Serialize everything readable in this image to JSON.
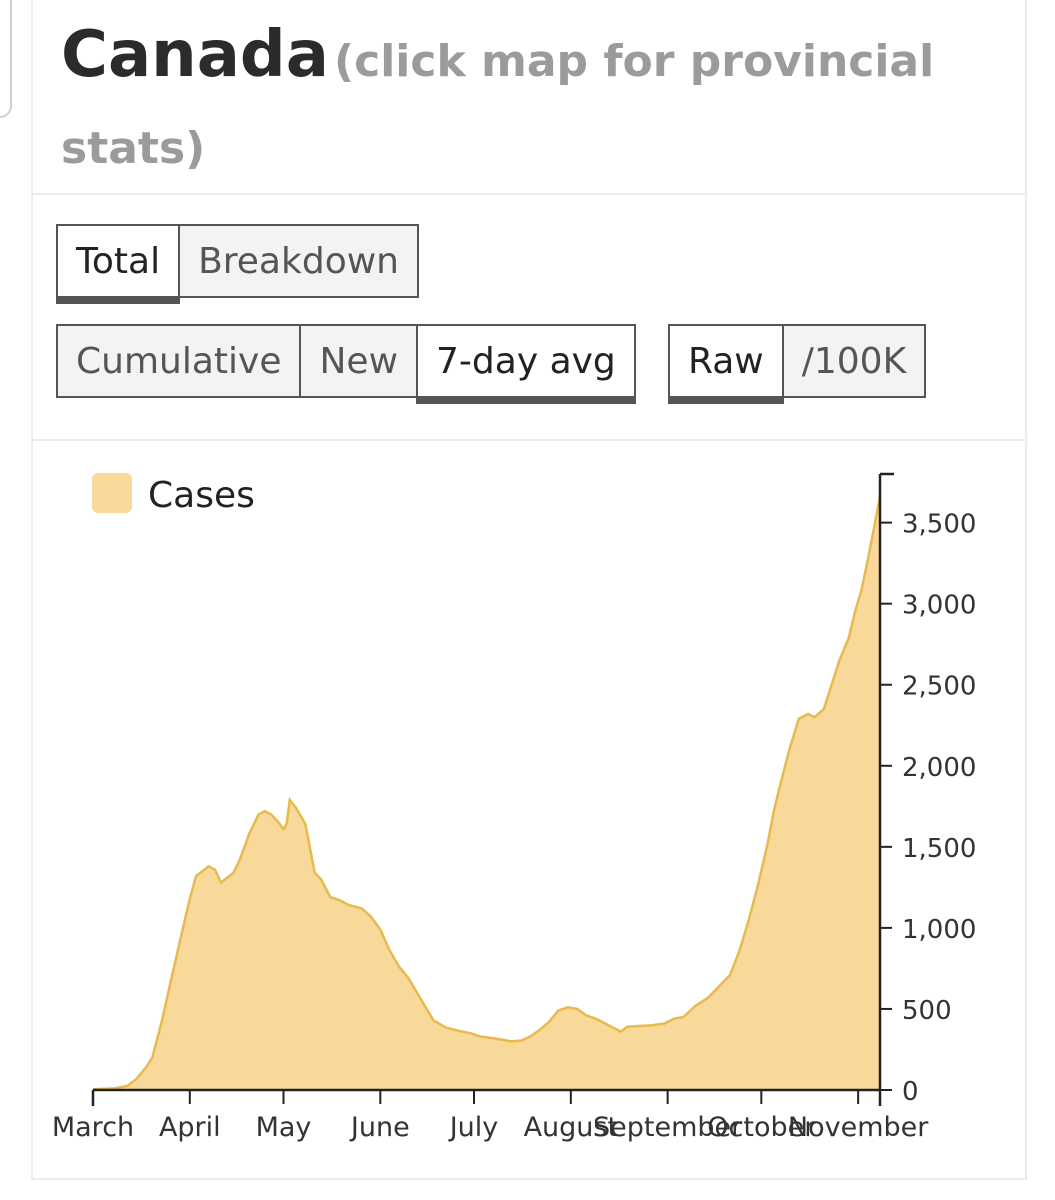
{
  "header": {
    "title": "Canada",
    "subtitle": "(click map for provincial stats)"
  },
  "controls": {
    "type_buttons": [
      {
        "label": "Total",
        "active": true
      },
      {
        "label": "Breakdown",
        "active": false
      }
    ],
    "mode_buttons": [
      {
        "label": "Cumulative",
        "active": false
      },
      {
        "label": "New",
        "active": false
      },
      {
        "label": "7-day avg",
        "active": true
      }
    ],
    "scale_buttons": [
      {
        "label": "Raw",
        "active": true
      },
      {
        "label": "/100K",
        "active": false
      }
    ]
  },
  "colors": {
    "area_fill": "#f9d99a",
    "area_stroke": "#e8b94e",
    "axis": "#222222"
  },
  "chart_data": {
    "type": "area",
    "legend": "Cases",
    "legend_position": "top-left",
    "y_axis_position": "right",
    "grid": false,
    "ylim": [
      0,
      3800
    ],
    "y_ticks": [
      0,
      500,
      1000,
      1500,
      2000,
      2500,
      3000,
      3500
    ],
    "y_tick_labels": [
      "0",
      "500",
      "1,000",
      "1,500",
      "2,000",
      "2,500",
      "3,000",
      "3,500"
    ],
    "x_ticks": [
      "March",
      "April",
      "May",
      "June",
      "July",
      "August",
      "September",
      "October",
      "November"
    ],
    "x_range": [
      "2020-03-01",
      "2020-11-08"
    ],
    "series": [
      {
        "name": "Cases",
        "points": [
          [
            "2020-03-01",
            5
          ],
          [
            "2020-03-08",
            10
          ],
          [
            "2020-03-12",
            25
          ],
          [
            "2020-03-15",
            70
          ],
          [
            "2020-03-18",
            140
          ],
          [
            "2020-03-20",
            200
          ],
          [
            "2020-03-23",
            420
          ],
          [
            "2020-03-26",
            680
          ],
          [
            "2020-03-29",
            930
          ],
          [
            "2020-04-01",
            1180
          ],
          [
            "2020-04-03",
            1320
          ],
          [
            "2020-04-05",
            1350
          ],
          [
            "2020-04-07",
            1380
          ],
          [
            "2020-04-09",
            1360
          ],
          [
            "2020-04-11",
            1280
          ],
          [
            "2020-04-13",
            1310
          ],
          [
            "2020-04-15",
            1340
          ],
          [
            "2020-04-17",
            1420
          ],
          [
            "2020-04-20",
            1580
          ],
          [
            "2020-04-23",
            1700
          ],
          [
            "2020-04-25",
            1720
          ],
          [
            "2020-04-27",
            1700
          ],
          [
            "2020-04-29",
            1660
          ],
          [
            "2020-05-01",
            1610
          ],
          [
            "2020-05-02",
            1640
          ],
          [
            "2020-05-03",
            1790
          ],
          [
            "2020-05-05",
            1740
          ],
          [
            "2020-05-08",
            1640
          ],
          [
            "2020-05-11",
            1340
          ],
          [
            "2020-05-13",
            1300
          ],
          [
            "2020-05-16",
            1190
          ],
          [
            "2020-05-19",
            1170
          ],
          [
            "2020-05-22",
            1140
          ],
          [
            "2020-05-26",
            1120
          ],
          [
            "2020-05-29",
            1070
          ],
          [
            "2020-06-01",
            990
          ],
          [
            "2020-06-04",
            860
          ],
          [
            "2020-06-07",
            760
          ],
          [
            "2020-06-10",
            690
          ],
          [
            "2020-06-14",
            560
          ],
          [
            "2020-06-18",
            430
          ],
          [
            "2020-06-22",
            385
          ],
          [
            "2020-06-26",
            365
          ],
          [
            "2020-06-30",
            350
          ],
          [
            "2020-07-03",
            330
          ],
          [
            "2020-07-07",
            320
          ],
          [
            "2020-07-10",
            310
          ],
          [
            "2020-07-13",
            300
          ],
          [
            "2020-07-16",
            305
          ],
          [
            "2020-07-19",
            330
          ],
          [
            "2020-07-22",
            370
          ],
          [
            "2020-07-25",
            420
          ],
          [
            "2020-07-28",
            490
          ],
          [
            "2020-07-31",
            510
          ],
          [
            "2020-08-03",
            500
          ],
          [
            "2020-08-06",
            460
          ],
          [
            "2020-08-09",
            440
          ],
          [
            "2020-08-12",
            410
          ],
          [
            "2020-08-15",
            380
          ],
          [
            "2020-08-17",
            360
          ],
          [
            "2020-08-19",
            390
          ],
          [
            "2020-08-23",
            395
          ],
          [
            "2020-08-27",
            400
          ],
          [
            "2020-08-31",
            410
          ],
          [
            "2020-09-03",
            440
          ],
          [
            "2020-09-06",
            450
          ],
          [
            "2020-09-10",
            520
          ],
          [
            "2020-09-14",
            570
          ],
          [
            "2020-09-18",
            650
          ],
          [
            "2020-09-21",
            710
          ],
          [
            "2020-09-24",
            860
          ],
          [
            "2020-09-27",
            1050
          ],
          [
            "2020-09-30",
            1270
          ],
          [
            "2020-10-03",
            1520
          ],
          [
            "2020-10-05",
            1720
          ],
          [
            "2020-10-07",
            1880
          ],
          [
            "2020-10-10",
            2100
          ],
          [
            "2020-10-13",
            2290
          ],
          [
            "2020-10-16",
            2320
          ],
          [
            "2020-10-18",
            2300
          ],
          [
            "2020-10-21",
            2350
          ],
          [
            "2020-10-24",
            2530
          ],
          [
            "2020-10-26",
            2650
          ],
          [
            "2020-10-29",
            2790
          ],
          [
            "2020-10-31",
            2950
          ],
          [
            "2020-11-02",
            3080
          ],
          [
            "2020-11-04",
            3260
          ],
          [
            "2020-11-06",
            3460
          ],
          [
            "2020-11-08",
            3660
          ]
        ]
      }
    ]
  }
}
